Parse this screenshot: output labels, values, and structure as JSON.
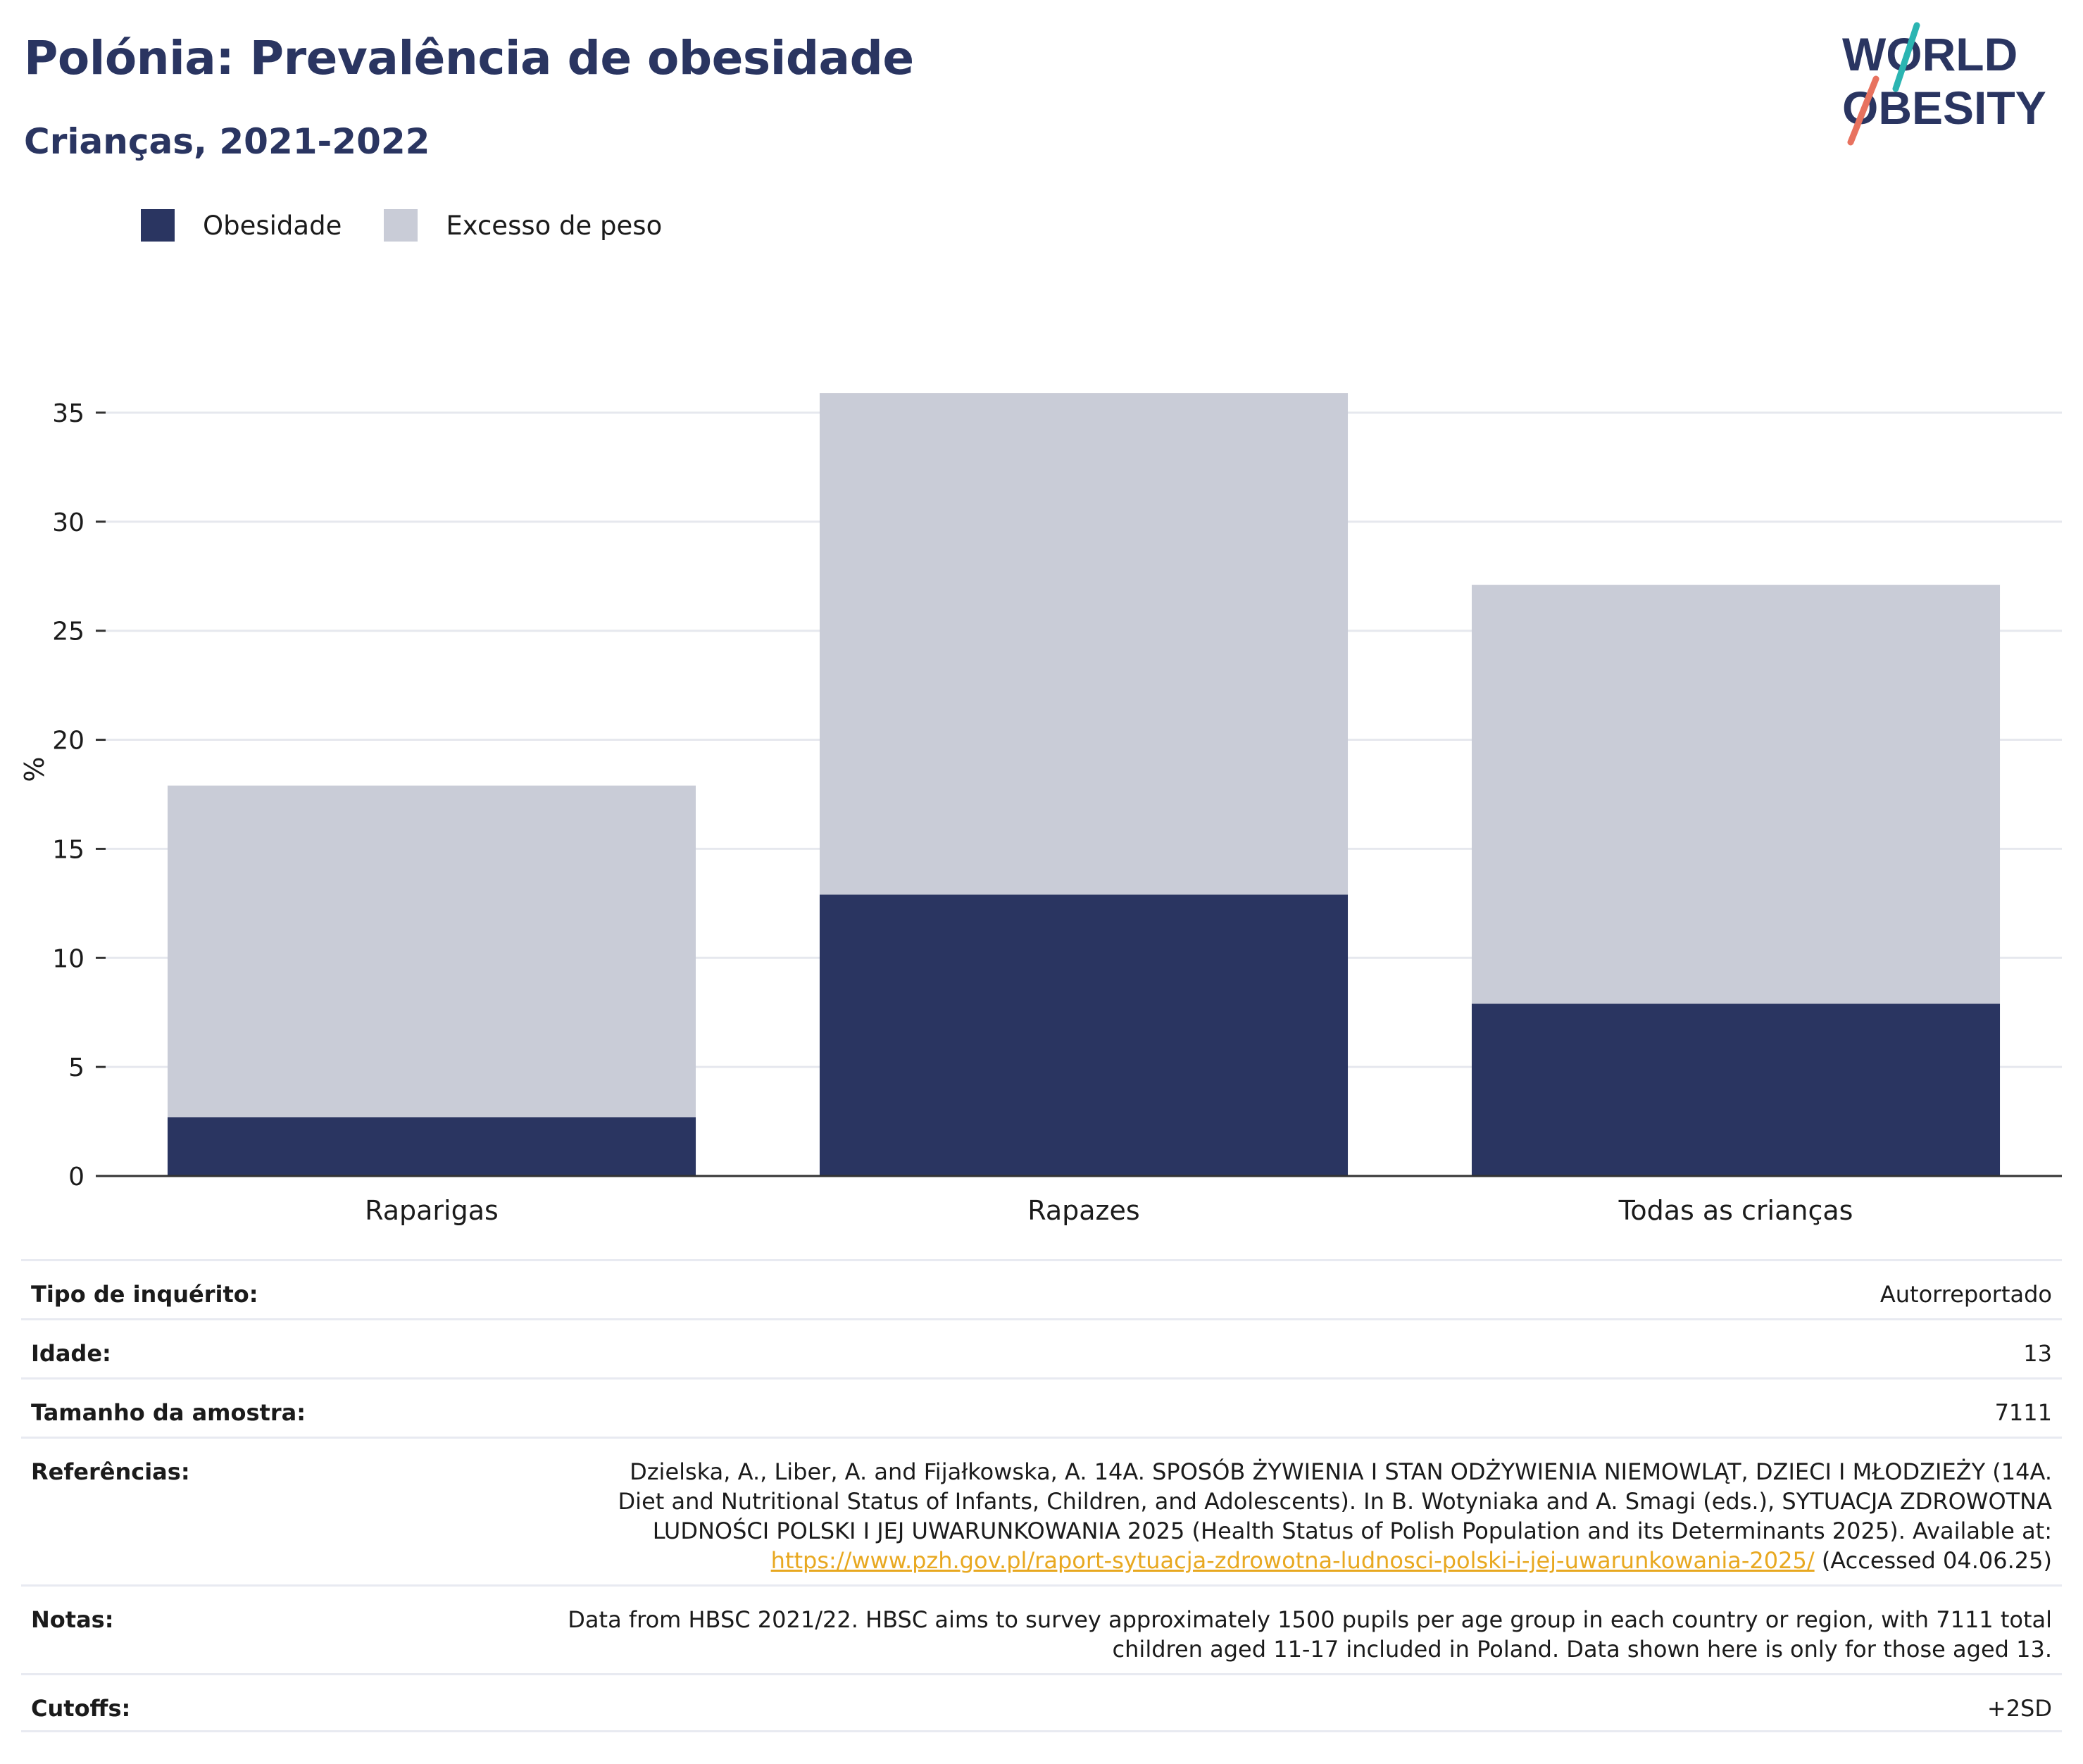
{
  "title": "Polónia: Prevalência de obesidade",
  "subtitle": "Crianças, 2021-2022",
  "logo": {
    "line1": "WORLD",
    "line2": "OBESITY",
    "accent_teal": "#2bb5b2",
    "accent_coral": "#e8725f",
    "text_color": "#2a3561"
  },
  "colors": {
    "obesity": "#2a3561",
    "overweight": "#c9ccd7",
    "grid": "#e6e8ee",
    "axis": "#333333"
  },
  "legend": [
    {
      "label": "Obesidade",
      "color": "#2a3561"
    },
    {
      "label": "Excesso de peso",
      "color": "#c9ccd7"
    }
  ],
  "chart_data": {
    "type": "bar",
    "stacked": true,
    "categories": [
      "Raparigas",
      "Rapazes",
      "Todas as crianças"
    ],
    "series": [
      {
        "name": "Obesidade",
        "values": [
          2.7,
          12.9,
          7.9
        ]
      },
      {
        "name": "Excesso de peso",
        "values": [
          15.2,
          23.0,
          19.2
        ]
      }
    ],
    "ylabel": "%",
    "ylim": [
      0,
      36
    ],
    "yticks": [
      0,
      5,
      10,
      15,
      20,
      25,
      30,
      35
    ],
    "grid": true,
    "legend_position": "top-left"
  },
  "info": {
    "survey_type": {
      "label": "Tipo de inquérito:",
      "value": "Autorreportado"
    },
    "age": {
      "label": "Idade:",
      "value": "13"
    },
    "sample_size": {
      "label": "Tamanho da amostra:",
      "value": "7111"
    },
    "references": {
      "label": "Referências:",
      "text_line1": "Dzielska, A., Liber, A. and Fijałkowska, A. 14A. SPOSÓB ŻYWIENIA I STAN ODŻYWIENIA NIEMOWLĄT, DZIECI I MŁODZIEŻY (14A.",
      "text_line2": "Diet and Nutritional Status of Infants, Children, and Adolescents). In B. Wotyniaka and A. Smagi (eds.), SYTUACJA ZDROWOTNA",
      "text_line3": "LUDNOŚCI POLSKI I JEJ UWARUNKOWANIA 2025 (Health Status of Polish Population and its Determinants 2025). Available at:",
      "link": "https://www.pzh.gov.pl/raport-sytuacja-zdrowotna-ludnosci-polski-i-jej-uwarunkowania-2025/",
      "after_link": " (Accessed 04.06.25)"
    },
    "notes": {
      "label": "Notas:",
      "line1": "Data from HBSC 2021/22. HBSC aims to survey approximately 1500 pupils per age group in each country or region, with 7111 total",
      "line2": "children aged 11-17 included in Poland. Data shown here is only for those aged 13."
    },
    "cutoffs": {
      "label": "Cutoffs:",
      "value": "+2SD"
    }
  }
}
